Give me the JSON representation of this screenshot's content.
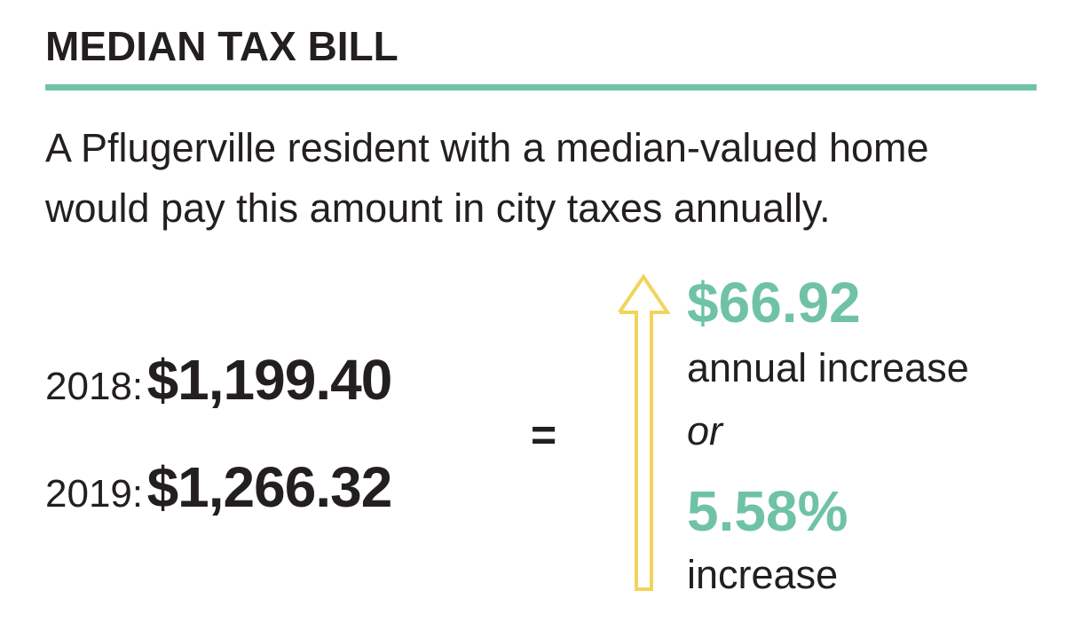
{
  "title": "MEDIAN TAX BILL",
  "description": {
    "line1": "A Pflugerville resident with a median-valued home",
    "line2": "would pay this amount in city taxes annually."
  },
  "bills": [
    {
      "label": "2018:",
      "value": "$1,199.40"
    },
    {
      "label": "2019:",
      "value": "$1,266.32"
    }
  ],
  "equals": "=",
  "increase": {
    "amount": "$66.92",
    "amount_label": "annual increase",
    "connector": "or",
    "percent": "5.58%",
    "percent_label": "increase"
  },
  "colors": {
    "accent": "#6fc2a8",
    "arrow": "#f2d45c",
    "text": "#231f20"
  },
  "icons": {
    "arrow": "up-arrow-icon"
  }
}
